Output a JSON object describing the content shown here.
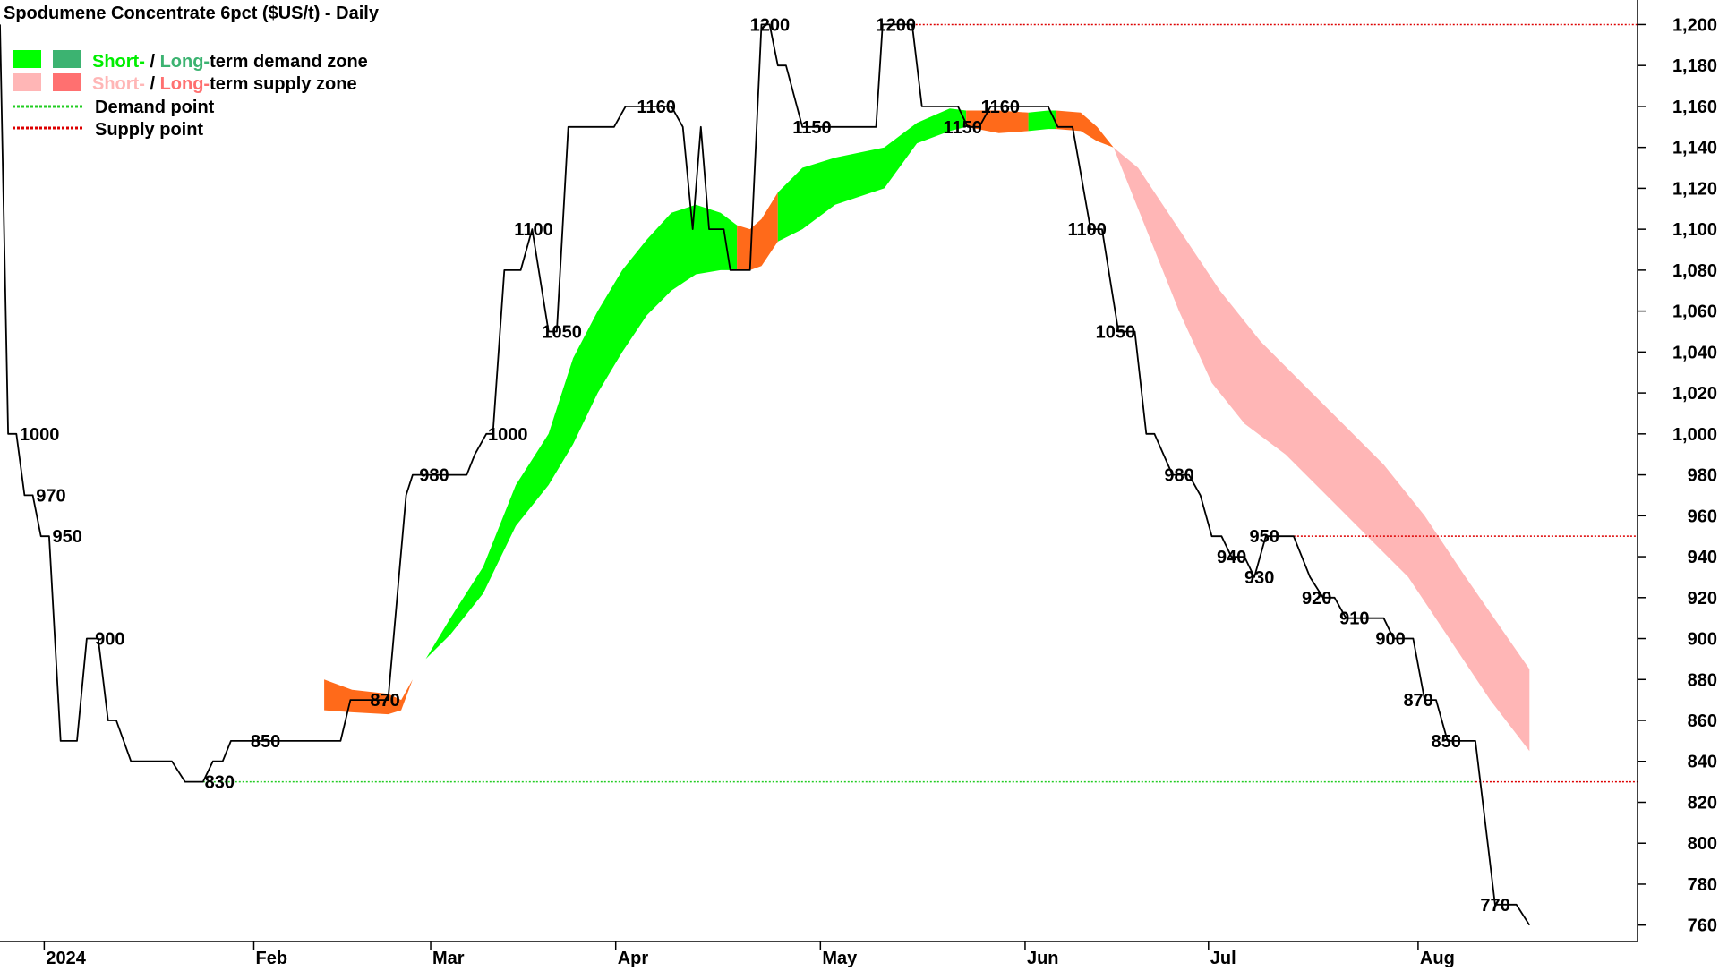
{
  "chart_data": {
    "type": "line",
    "title": "Spodumene Concentrate 6pct ($US/t) - Daily",
    "ylim": [
      752,
      1212
    ],
    "y_ticks": [
      1200,
      1180,
      1160,
      1140,
      1120,
      1100,
      1080,
      1060,
      1040,
      1020,
      1000,
      980,
      960,
      940,
      920,
      900,
      880,
      860,
      840,
      820,
      800,
      780,
      760
    ],
    "y_tick_labels": [
      "1,200",
      "1,180",
      "1,160",
      "1,140",
      "1,120",
      "1,100",
      "1,080",
      "1,060",
      "1,040",
      "1,020",
      "1,000",
      "980",
      "960",
      "940",
      "920",
      "900",
      "880",
      "860",
      "840",
      "820",
      "800",
      "780",
      "760"
    ],
    "x_range": [
      0,
      1000
    ],
    "x_ticks": [
      {
        "label": "2024",
        "x": 27
      },
      {
        "label": "Feb",
        "x": 155
      },
      {
        "label": "Mar",
        "x": 263
      },
      {
        "label": "Apr",
        "x": 376
      },
      {
        "label": "May",
        "x": 501
      },
      {
        "label": "Jun",
        "x": 626
      },
      {
        "label": "Jul",
        "x": 738
      },
      {
        "label": "Aug",
        "x": 866
      }
    ],
    "legend": {
      "demand_zone": {
        "short": "Short-",
        "sep": " / ",
        "long": "Long-",
        "rest": "term demand zone"
      },
      "supply_zone": {
        "short": "Short-",
        "sep": " / ",
        "long": "Long-",
        "rest": "term supply zone"
      },
      "demand_point": "Demand point",
      "supply_point": "Supply point"
    },
    "colors": {
      "price_line": "#000000",
      "demand_short": "#00ff00",
      "demand_long": "#3cb371",
      "supply_short": "#ffb6b6",
      "supply_long": "#ff7070",
      "zone_flip": "#ff6a1a",
      "demand_point_line": "#22cc22",
      "supply_point_line": "#dd0000"
    },
    "price_series": [
      {
        "x": 0,
        "y": 1200
      },
      {
        "x": 5,
        "y": 1000
      },
      {
        "x": 10,
        "y": 1000
      },
      {
        "x": 15,
        "y": 970
      },
      {
        "x": 20,
        "y": 970
      },
      {
        "x": 25,
        "y": 950
      },
      {
        "x": 30,
        "y": 950
      },
      {
        "x": 37,
        "y": 850
      },
      {
        "x": 47,
        "y": 850
      },
      {
        "x": 53,
        "y": 900
      },
      {
        "x": 60,
        "y": 900
      },
      {
        "x": 66,
        "y": 860
      },
      {
        "x": 71,
        "y": 860
      },
      {
        "x": 80,
        "y": 840
      },
      {
        "x": 105,
        "y": 840
      },
      {
        "x": 113,
        "y": 830
      },
      {
        "x": 124,
        "y": 830
      },
      {
        "x": 130,
        "y": 840
      },
      {
        "x": 136,
        "y": 840
      },
      {
        "x": 141,
        "y": 850
      },
      {
        "x": 183,
        "y": 850
      },
      {
        "x": 208,
        "y": 850
      },
      {
        "x": 214,
        "y": 870
      },
      {
        "x": 225,
        "y": 870
      },
      {
        "x": 237,
        "y": 870
      },
      {
        "x": 248,
        "y": 970
      },
      {
        "x": 252,
        "y": 980
      },
      {
        "x": 268,
        "y": 980
      },
      {
        "x": 285,
        "y": 980
      },
      {
        "x": 290,
        "y": 990
      },
      {
        "x": 297,
        "y": 1000
      },
      {
        "x": 301,
        "y": 1000
      },
      {
        "x": 308,
        "y": 1080
      },
      {
        "x": 318,
        "y": 1080
      },
      {
        "x": 325,
        "y": 1100
      },
      {
        "x": 335,
        "y": 1050
      },
      {
        "x": 340,
        "y": 1050
      },
      {
        "x": 347,
        "y": 1150
      },
      {
        "x": 375,
        "y": 1150
      },
      {
        "x": 382,
        "y": 1160
      },
      {
        "x": 410,
        "y": 1160
      },
      {
        "x": 417,
        "y": 1150
      },
      {
        "x": 423,
        "y": 1100
      },
      {
        "x": 428,
        "y": 1150
      },
      {
        "x": 433,
        "y": 1100
      },
      {
        "x": 442,
        "y": 1100
      },
      {
        "x": 446,
        "y": 1080
      },
      {
        "x": 458,
        "y": 1080
      },
      {
        "x": 465,
        "y": 1200
      },
      {
        "x": 470,
        "y": 1200
      },
      {
        "x": 475,
        "y": 1180
      },
      {
        "x": 480,
        "y": 1180
      },
      {
        "x": 490,
        "y": 1150
      },
      {
        "x": 535,
        "y": 1150
      },
      {
        "x": 539,
        "y": 1200
      },
      {
        "x": 557,
        "y": 1200
      },
      {
        "x": 563,
        "y": 1160
      },
      {
        "x": 585,
        "y": 1160
      },
      {
        "x": 591,
        "y": 1150
      },
      {
        "x": 598,
        "y": 1150
      },
      {
        "x": 605,
        "y": 1160
      },
      {
        "x": 640,
        "y": 1160
      },
      {
        "x": 646,
        "y": 1150
      },
      {
        "x": 655,
        "y": 1150
      },
      {
        "x": 666,
        "y": 1100
      },
      {
        "x": 673,
        "y": 1100
      },
      {
        "x": 683,
        "y": 1050
      },
      {
        "x": 693,
        "y": 1050
      },
      {
        "x": 700,
        "y": 1000
      },
      {
        "x": 705,
        "y": 1000
      },
      {
        "x": 716,
        "y": 980
      },
      {
        "x": 726,
        "y": 980
      },
      {
        "x": 733,
        "y": 970
      },
      {
        "x": 740,
        "y": 950
      },
      {
        "x": 746,
        "y": 950
      },
      {
        "x": 752,
        "y": 940
      },
      {
        "x": 760,
        "y": 940
      },
      {
        "x": 766,
        "y": 930
      },
      {
        "x": 773,
        "y": 950
      },
      {
        "x": 790,
        "y": 950
      },
      {
        "x": 800,
        "y": 930
      },
      {
        "x": 808,
        "y": 920
      },
      {
        "x": 815,
        "y": 920
      },
      {
        "x": 822,
        "y": 910
      },
      {
        "x": 845,
        "y": 910
      },
      {
        "x": 851,
        "y": 900
      },
      {
        "x": 863,
        "y": 900
      },
      {
        "x": 870,
        "y": 870
      },
      {
        "x": 877,
        "y": 870
      },
      {
        "x": 884,
        "y": 850
      },
      {
        "x": 901,
        "y": 850
      },
      {
        "x": 913,
        "y": 770
      },
      {
        "x": 926,
        "y": 770
      },
      {
        "x": 934,
        "y": 760
      }
    ],
    "data_labels": [
      {
        "text": "1000",
        "x": 12,
        "y": 1000
      },
      {
        "text": "970",
        "x": 22,
        "y": 970
      },
      {
        "text": "950",
        "x": 32,
        "y": 950
      },
      {
        "text": "900",
        "x": 58,
        "y": 900
      },
      {
        "text": "830",
        "x": 125,
        "y": 830
      },
      {
        "text": "850",
        "x": 153,
        "y": 850
      },
      {
        "text": "870",
        "x": 226,
        "y": 870
      },
      {
        "text": "980",
        "x": 256,
        "y": 980
      },
      {
        "text": "1000",
        "x": 298,
        "y": 1000
      },
      {
        "text": "1100",
        "x": 314,
        "y": 1100
      },
      {
        "text": "1050",
        "x": 331,
        "y": 1050
      },
      {
        "text": "1160",
        "x": 389,
        "y": 1160
      },
      {
        "text": "1200",
        "x": 458,
        "y": 1200
      },
      {
        "text": "1150",
        "x": 484,
        "y": 1150
      },
      {
        "text": "1200",
        "x": 535,
        "y": 1200
      },
      {
        "text": "1150",
        "x": 576,
        "y": 1150
      },
      {
        "text": "1160",
        "x": 599,
        "y": 1160
      },
      {
        "text": "1100",
        "x": 652,
        "y": 1100
      },
      {
        "text": "1050",
        "x": 669,
        "y": 1050
      },
      {
        "text": "980",
        "x": 711,
        "y": 980
      },
      {
        "text": "940",
        "x": 743,
        "y": 940
      },
      {
        "text": "930",
        "x": 760,
        "y": 930
      },
      {
        "text": "950",
        "x": 763,
        "y": 950
      },
      {
        "text": "920",
        "x": 795,
        "y": 920
      },
      {
        "text": "910",
        "x": 818,
        "y": 910
      },
      {
        "text": "900",
        "x": 840,
        "y": 900
      },
      {
        "text": "870",
        "x": 857,
        "y": 870
      },
      {
        "text": "850",
        "x": 874,
        "y": 850
      },
      {
        "text": "770",
        "x": 904,
        "y": 770
      }
    ],
    "demand_points": [
      {
        "y": 830,
        "x_start": 124,
        "x_end": 901
      }
    ],
    "supply_points": [
      {
        "y": 1200,
        "x_start": 557,
        "x_end": 1000
      },
      {
        "y": 950,
        "x_start": 790,
        "x_end": 1000
      },
      {
        "y": 830,
        "x_start": 901,
        "x_end": 1000
      }
    ],
    "zones": [
      {
        "kind": "flip",
        "upper": [
          [
            198,
            880
          ],
          [
            215,
            875
          ],
          [
            237,
            873
          ],
          [
            245,
            870
          ],
          [
            252,
            880
          ]
        ],
        "lower": [
          [
            252,
            880
          ],
          [
            245,
            865
          ],
          [
            237,
            863
          ],
          [
            215,
            864
          ],
          [
            198,
            865
          ]
        ]
      },
      {
        "kind": "demand",
        "upper": [
          [
            260,
            890
          ],
          [
            275,
            910
          ],
          [
            295,
            935
          ],
          [
            315,
            975
          ],
          [
            335,
            1000
          ],
          [
            350,
            1037
          ],
          [
            365,
            1060
          ],
          [
            380,
            1080
          ],
          [
            395,
            1095
          ],
          [
            410,
            1108
          ],
          [
            425,
            1112
          ],
          [
            440,
            1108
          ],
          [
            450,
            1102
          ]
        ],
        "lower": [
          [
            450,
            1080
          ],
          [
            440,
            1080
          ],
          [
            425,
            1078
          ],
          [
            410,
            1070
          ],
          [
            395,
            1058
          ],
          [
            380,
            1040
          ],
          [
            365,
            1020
          ],
          [
            350,
            995
          ],
          [
            335,
            975
          ],
          [
            315,
            955
          ],
          [
            295,
            922
          ],
          [
            275,
            902
          ],
          [
            260,
            890
          ]
        ]
      },
      {
        "kind": "flip",
        "upper": [
          [
            450,
            1102
          ],
          [
            458,
            1100
          ],
          [
            465,
            1105
          ],
          [
            475,
            1118
          ]
        ],
        "lower": [
          [
            475,
            1094
          ],
          [
            465,
            1082
          ],
          [
            458,
            1080
          ],
          [
            450,
            1080
          ]
        ]
      },
      {
        "kind": "demand",
        "upper": [
          [
            475,
            1118
          ],
          [
            490,
            1130
          ],
          [
            510,
            1135
          ],
          [
            540,
            1140
          ],
          [
            560,
            1152
          ],
          [
            580,
            1159
          ],
          [
            590,
            1158
          ]
        ],
        "lower": [
          [
            590,
            1150
          ],
          [
            580,
            1148
          ],
          [
            560,
            1142
          ],
          [
            540,
            1120
          ],
          [
            510,
            1112
          ],
          [
            490,
            1100
          ],
          [
            475,
            1094
          ]
        ]
      },
      {
        "kind": "flip",
        "upper": [
          [
            590,
            1158
          ],
          [
            610,
            1158
          ],
          [
            628,
            1157
          ]
        ],
        "lower": [
          [
            628,
            1148
          ],
          [
            610,
            1147
          ],
          [
            590,
            1150
          ]
        ]
      },
      {
        "kind": "demand",
        "upper": [
          [
            628,
            1157
          ],
          [
            640,
            1158
          ],
          [
            645,
            1158
          ]
        ],
        "lower": [
          [
            645,
            1149
          ],
          [
            640,
            1149
          ],
          [
            628,
            1148
          ]
        ]
      },
      {
        "kind": "flip",
        "upper": [
          [
            645,
            1158
          ],
          [
            660,
            1157
          ],
          [
            670,
            1150
          ],
          [
            680,
            1140
          ]
        ],
        "lower": [
          [
            680,
            1140
          ],
          [
            670,
            1143
          ],
          [
            660,
            1148
          ],
          [
            645,
            1149
          ]
        ]
      },
      {
        "kind": "supply",
        "upper": [
          [
            680,
            1140
          ],
          [
            695,
            1130
          ],
          [
            720,
            1100
          ],
          [
            745,
            1070
          ],
          [
            770,
            1045
          ],
          [
            795,
            1025
          ],
          [
            820,
            1005
          ],
          [
            845,
            985
          ],
          [
            870,
            960
          ],
          [
            895,
            930
          ],
          [
            934,
            885
          ]
        ],
        "lower": [
          [
            934,
            845
          ],
          [
            910,
            870
          ],
          [
            885,
            900
          ],
          [
            860,
            930
          ],
          [
            835,
            950
          ],
          [
            810,
            970
          ],
          [
            785,
            990
          ],
          [
            760,
            1005
          ],
          [
            740,
            1025
          ],
          [
            720,
            1060
          ],
          [
            700,
            1100
          ],
          [
            680,
            1140
          ]
        ]
      }
    ]
  }
}
